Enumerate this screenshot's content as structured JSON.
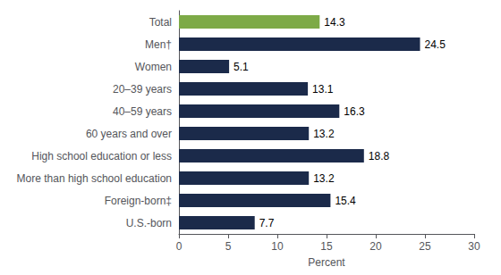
{
  "chart_data": {
    "type": "bar",
    "orientation": "horizontal",
    "categories": [
      "U.S.-born",
      "Foreign-born‡",
      "More than high school education",
      "High school education or less",
      "60 years and over",
      "40–59 years",
      "20–39 years",
      "Women",
      "Men†",
      "Total"
    ],
    "values": [
      7.7,
      15.4,
      13.2,
      18.8,
      13.2,
      16.3,
      13.1,
      5.1,
      24.5,
      14.3
    ],
    "colors": [
      "#1b2a4a",
      "#1b2a4a",
      "#1b2a4a",
      "#1b2a4a",
      "#1b2a4a",
      "#1b2a4a",
      "#1b2a4a",
      "#1b2a4a",
      "#1b2a4a",
      "#7daa47"
    ],
    "xlabel": "Percent",
    "xlim": [
      0,
      30
    ],
    "xticks": [
      0,
      5,
      10,
      15,
      20,
      25,
      30
    ],
    "grid": false,
    "data_labels": true
  }
}
